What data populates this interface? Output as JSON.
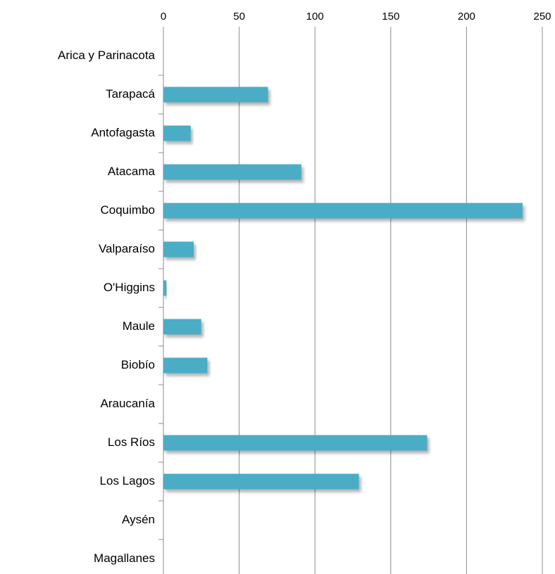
{
  "chart_data": {
    "type": "bar",
    "orientation": "horizontal",
    "categories": [
      "Arica y Parinacota",
      "Tarapacá",
      "Antofagasta",
      "Atacama",
      "Coquimbo",
      "Valparaíso",
      "O'Higgins",
      "Maule",
      "Biobío",
      "Araucanía",
      "Los Ríos",
      "Los Lagos",
      "Aysén",
      "Magallanes"
    ],
    "values": [
      0,
      69,
      18,
      91,
      237,
      20,
      2,
      25,
      29,
      0,
      174,
      129,
      0,
      0
    ],
    "color": "#4bacc6",
    "xlim": [
      0,
      250
    ],
    "xticks": [
      0,
      50,
      100,
      150,
      200,
      250
    ],
    "grid": true
  }
}
